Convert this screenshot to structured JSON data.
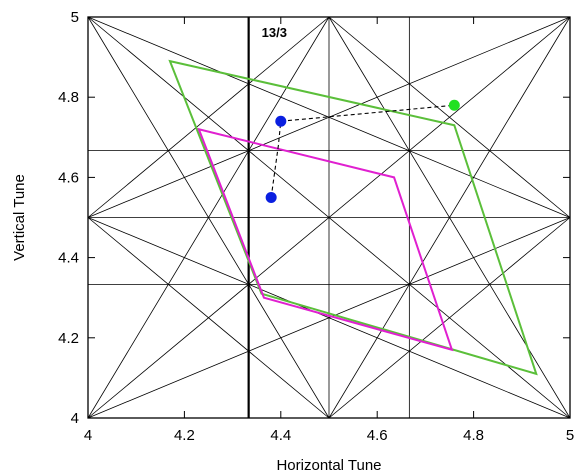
{
  "chart_data": {
    "type": "scatter",
    "title": "",
    "xlabel": "Horizontal Tune",
    "ylabel": "Vertical Tune",
    "xlim": [
      4,
      5
    ],
    "ylim": [
      4,
      5
    ],
    "x_ticks": [
      "4",
      "4.2",
      "4.4",
      "4.6",
      "4.8",
      "5"
    ],
    "y_ticks": [
      "4",
      "4.2",
      "4.4",
      "4.6",
      "4.8",
      "5"
    ],
    "grid": false,
    "annotation": "13/3",
    "resonance_lines": [
      {
        "x1": 4,
        "y1": 4,
        "x2": 5,
        "y2": 5
      },
      {
        "x1": 4,
        "y1": 5,
        "x2": 5,
        "y2": 4
      },
      {
        "x1": 4,
        "y1": 4.5,
        "x2": 4.5,
        "y2": 5
      },
      {
        "x1": 4.5,
        "y1": 5,
        "x2": 5,
        "y2": 4.5
      },
      {
        "x1": 5,
        "y1": 4.5,
        "x2": 4.5,
        "y2": 4
      },
      {
        "x1": 4.5,
        "y1": 4,
        "x2": 4,
        "y2": 4.5
      },
      {
        "x1": 4,
        "y1": 4,
        "x2": 4.5,
        "y2": 5
      },
      {
        "x1": 4.5,
        "y1": 5,
        "x2": 5,
        "y2": 4
      },
      {
        "x1": 4.5,
        "y1": 4,
        "x2": 5,
        "y2": 5
      },
      {
        "x1": 4,
        "y1": 5,
        "x2": 4.5,
        "y2": 4
      },
      {
        "x1": 4,
        "y1": 4,
        "x2": 5,
        "y2": 4.5
      },
      {
        "x1": 4,
        "y1": 4.5,
        "x2": 5,
        "y2": 4
      },
      {
        "x1": 4,
        "y1": 4.5,
        "x2": 5,
        "y2": 5
      },
      {
        "x1": 4,
        "y1": 5,
        "x2": 5,
        "y2": 4.5
      },
      {
        "x1": 4,
        "y1": 4.5,
        "x2": 5,
        "y2": 4.5
      },
      {
        "x1": 4.5,
        "y1": 4,
        "x2": 4.5,
        "y2": 5
      },
      {
        "x1": 4,
        "y1": 4.6667,
        "x2": 5,
        "y2": 4.6667
      },
      {
        "x1": 4,
        "y1": 4.3333,
        "x2": 5,
        "y2": 4.3333
      },
      {
        "x1": 4.6667,
        "y1": 4,
        "x2": 4.6667,
        "y2": 5
      }
    ],
    "highlight_line": {
      "x1": 4.3333,
      "y1": 4,
      "x2": 4.3333,
      "y2": 5
    },
    "series": [
      {
        "type": "polygon",
        "color": "#5bbf3a",
        "points": [
          [
            4.17,
            4.89
          ],
          [
            4.76,
            4.73
          ],
          [
            4.93,
            4.11
          ],
          [
            4.36,
            4.31
          ]
        ]
      },
      {
        "type": "polygon",
        "color": "#e020d0",
        "points": [
          [
            4.23,
            4.72
          ],
          [
            4.635,
            4.6
          ],
          [
            4.755,
            4.17
          ],
          [
            4.365,
            4.3
          ]
        ]
      },
      {
        "type": "dashed-path",
        "color": "#000000",
        "points": [
          [
            4.38,
            4.55
          ],
          [
            4.395,
            4.68
          ],
          [
            4.4,
            4.74
          ],
          [
            4.76,
            4.78
          ]
        ]
      },
      {
        "type": "markers",
        "color": "#0a1fe0",
        "points": [
          [
            4.4,
            4.74
          ],
          [
            4.38,
            4.55
          ]
        ]
      },
      {
        "type": "markers",
        "color": "#22e022",
        "points": [
          [
            4.76,
            4.78
          ]
        ]
      }
    ]
  }
}
